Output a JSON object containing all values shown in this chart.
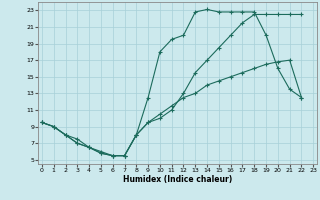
{
  "xlabel": "Humidex (Indice chaleur)",
  "xlim": [
    -0.3,
    23.3
  ],
  "ylim": [
    4.5,
    24.0
  ],
  "xticks": [
    0,
    1,
    2,
    3,
    4,
    5,
    6,
    7,
    8,
    9,
    10,
    11,
    12,
    13,
    14,
    15,
    16,
    17,
    18,
    19,
    20,
    21,
    22,
    23
  ],
  "yticks": [
    5,
    7,
    9,
    11,
    13,
    15,
    17,
    19,
    21,
    23
  ],
  "bg_color": "#cce9ed",
  "line_color": "#1c6b5c",
  "grid_color": "#a8d0d8",
  "curve1_x": [
    0,
    1,
    2,
    3,
    4,
    5,
    6,
    7,
    8,
    9,
    10,
    11,
    12,
    13,
    14,
    15,
    16,
    17,
    18,
    19,
    20,
    21,
    22
  ],
  "curve1_y": [
    9.5,
    9.0,
    8.0,
    7.5,
    6.5,
    6.0,
    5.5,
    5.5,
    8.0,
    9.5,
    10.5,
    11.5,
    12.5,
    13.0,
    14.0,
    14.5,
    15.0,
    15.5,
    16.0,
    16.5,
    16.8,
    17.0,
    12.5
  ],
  "curve2_x": [
    0,
    1,
    2,
    3,
    4,
    5,
    6,
    7,
    8,
    9,
    10,
    11,
    12,
    13,
    14,
    15,
    16,
    17,
    18,
    19,
    20,
    21,
    22
  ],
  "curve2_y": [
    9.5,
    9.0,
    8.0,
    7.0,
    6.5,
    5.8,
    5.5,
    5.5,
    8.0,
    12.5,
    18.0,
    19.5,
    20.0,
    22.8,
    23.1,
    22.8,
    22.8,
    22.8,
    22.8,
    20.0,
    16.0,
    13.5,
    12.5
  ],
  "curve3_x": [
    0,
    1,
    2,
    3,
    4,
    5,
    6,
    7,
    8,
    9,
    10,
    11,
    12,
    13,
    14,
    15,
    16,
    17,
    18,
    19,
    20,
    21,
    22
  ],
  "curve3_y": [
    9.5,
    9.0,
    8.0,
    7.0,
    6.5,
    5.8,
    5.5,
    5.5,
    8.0,
    9.5,
    10.0,
    11.0,
    13.0,
    15.5,
    17.0,
    18.5,
    20.0,
    21.5,
    22.5,
    22.5,
    22.5,
    22.5,
    22.5
  ]
}
